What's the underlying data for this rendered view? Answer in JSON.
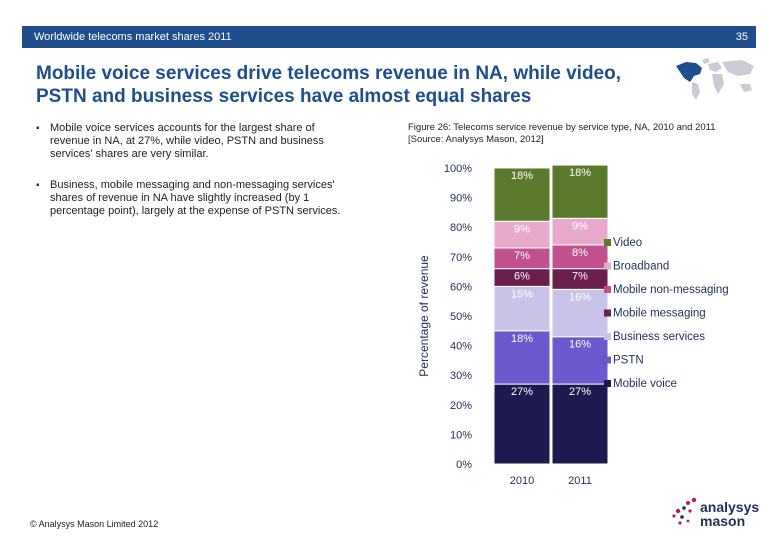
{
  "header": {
    "section": "Worldwide telecoms market shares 2011",
    "page_number": "35"
  },
  "title_line1": "Mobile voice services drive telecoms revenue in NA, while video,",
  "title_line2": "PSTN and business services have almost equal shares",
  "bullets": [
    "Mobile voice services accounts for the largest share of revenue in NA, at 27%, while video, PSTN and business services' shares are very similar.",
    "Business, mobile messaging and non-messaging services' shares of revenue in NA have slightly increased (by 1 percentage point), largely at the expense of PSTN services."
  ],
  "figure": {
    "caption_line1": "Figure 26: Telecoms service revenue by service type, NA, 2010 and 2011",
    "caption_line2": "[Source: Analysys Mason, 2012]"
  },
  "chart_data": {
    "type": "bar",
    "stacked": true,
    "categories": [
      "2010",
      "2011"
    ],
    "ylabel": "Percentage of revenue",
    "ylim": [
      0,
      100
    ],
    "yticks": [
      "0%",
      "10%",
      "20%",
      "30%",
      "40%",
      "50%",
      "60%",
      "70%",
      "80%",
      "90%",
      "100%"
    ],
    "legend_position": "right",
    "grid": false,
    "series": [
      {
        "name": "Mobile voice",
        "values": [
          27,
          27
        ],
        "labels": [
          "27%",
          "27%"
        ],
        "color": "#1c1a4e"
      },
      {
        "name": "PSTN",
        "values": [
          18,
          16
        ],
        "labels": [
          "18%",
          "16%"
        ],
        "color": "#6a5acd"
      },
      {
        "name": "Business services",
        "values": [
          15,
          16
        ],
        "labels": [
          "15%",
          "16%"
        ],
        "color": "#c9c3ea"
      },
      {
        "name": "Mobile messaging",
        "values": [
          6,
          7
        ],
        "labels": [
          "6%",
          "7%"
        ],
        "color": "#6b1f4b"
      },
      {
        "name": "Mobile non-messaging",
        "values": [
          7,
          8
        ],
        "labels": [
          "7%",
          "8%"
        ],
        "color": "#c0508e"
      },
      {
        "name": "Broadband",
        "values": [
          9,
          9
        ],
        "labels": [
          "9%",
          "9%"
        ],
        "color": "#e7a9cc"
      },
      {
        "name": "Video",
        "values": [
          18,
          18
        ],
        "labels": [
          "18%",
          "18%"
        ],
        "color": "#5b7a2e"
      }
    ]
  },
  "footer": {
    "copyright": "© Analysys Mason Limited 2012"
  },
  "logo": {
    "line1": "analysys",
    "line2": "mason"
  }
}
